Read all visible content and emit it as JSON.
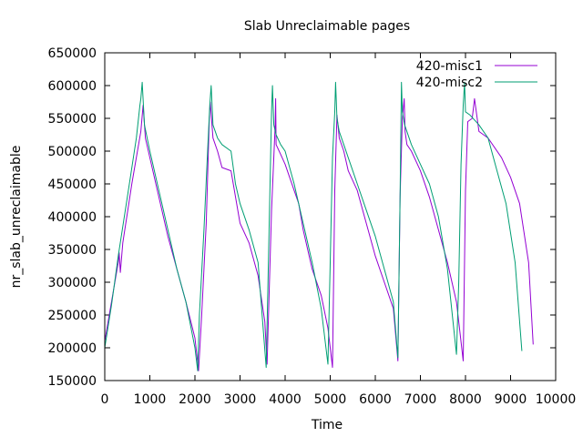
{
  "chart_data": {
    "type": "line",
    "title": "Slab Unreclaimable pages",
    "xlabel": "Time",
    "ylabel": "nr_slab_unreclaimable",
    "xlim": [
      0,
      10000
    ],
    "ylim": [
      150000,
      650000
    ],
    "xticks": [
      0,
      1000,
      2000,
      3000,
      4000,
      5000,
      6000,
      7000,
      8000,
      9000,
      10000
    ],
    "yticks": [
      150000,
      200000,
      250000,
      300000,
      350000,
      400000,
      450000,
      500000,
      550000,
      600000,
      650000
    ],
    "grid": false,
    "legend_position": "top-right",
    "series": [
      {
        "name": "420-misc1",
        "color": "#9400d3",
        "x": [
          0,
          150,
          300,
          320,
          345,
          400,
          600,
          800,
          850,
          900,
          1000,
          1200,
          1400,
          1600,
          1800,
          2000,
          2080,
          2150,
          2250,
          2320,
          2340,
          2400,
          2500,
          2600,
          2800,
          3000,
          3200,
          3400,
          3550,
          3600,
          3700,
          3780,
          3790,
          3800,
          3900,
          4000,
          4200,
          4300,
          4400,
          4600,
          4800,
          4950,
          5050,
          5100,
          5150,
          5200,
          5300,
          5400,
          5600,
          5800,
          6000,
          6200,
          6400,
          6500,
          6550,
          6600,
          6640,
          6660,
          6700,
          6800,
          7000,
          7200,
          7400,
          7600,
          7800,
          7950,
          8000,
          8050,
          8150,
          8200,
          8300,
          8500,
          8800,
          9000,
          9200,
          9400,
          9500
        ],
        "y": [
          210000,
          270000,
          330000,
          345000,
          315000,
          360000,
          450000,
          530000,
          570000,
          520000,
          490000,
          430000,
          370000,
          320000,
          270000,
          215000,
          165000,
          250000,
          390000,
          550000,
          575000,
          520000,
          500000,
          475000,
          470000,
          390000,
          360000,
          310000,
          240000,
          175000,
          410000,
          540000,
          580000,
          510000,
          495000,
          480000,
          440000,
          420000,
          380000,
          320000,
          280000,
          230000,
          170000,
          440000,
          555000,
          520000,
          500000,
          470000,
          440000,
          390000,
          340000,
          300000,
          260000,
          180000,
          430000,
          550000,
          580000,
          530000,
          510000,
          500000,
          470000,
          430000,
          380000,
          330000,
          270000,
          180000,
          440000,
          545000,
          550000,
          580000,
          530000,
          520000,
          490000,
          460000,
          420000,
          330000,
          205000
        ]
      },
      {
        "name": "420-misc2",
        "color": "#009e73",
        "x": [
          0,
          150,
          300,
          500,
          700,
          780,
          800,
          830,
          880,
          1000,
          1200,
          1400,
          1600,
          1800,
          2000,
          2060,
          2100,
          2200,
          2280,
          2330,
          2360,
          2400,
          2500,
          2600,
          2800,
          2900,
          3000,
          3200,
          3400,
          3580,
          3620,
          3700,
          3720,
          3750,
          3800,
          3900,
          4000,
          4200,
          4400,
          4600,
          4800,
          4950,
          5000,
          5050,
          5100,
          5120,
          5150,
          5200,
          5300,
          5400,
          5600,
          5800,
          6000,
          6200,
          6400,
          6500,
          6550,
          6580,
          6600,
          6650,
          6800,
          7000,
          7200,
          7400,
          7600,
          7800,
          7850,
          7900,
          7950,
          7980,
          8000,
          8100,
          8300,
          8500,
          8700,
          8900,
          9100,
          9250
        ],
        "y": [
          200000,
          265000,
          340000,
          430000,
          520000,
          570000,
          580000,
          605000,
          540000,
          500000,
          440000,
          380000,
          320000,
          270000,
          200000,
          165000,
          250000,
          380000,
          500000,
          570000,
          600000,
          540000,
          520000,
          510000,
          500000,
          450000,
          420000,
          380000,
          330000,
          170000,
          300000,
          560000,
          600000,
          540000,
          525000,
          510000,
          500000,
          450000,
          390000,
          330000,
          260000,
          175000,
          330000,
          490000,
          560000,
          605000,
          550000,
          530000,
          510000,
          490000,
          450000,
          410000,
          370000,
          320000,
          270000,
          185000,
          430000,
          605000,
          560000,
          540000,
          510000,
          480000,
          450000,
          400000,
          320000,
          190000,
          300000,
          480000,
          570000,
          605000,
          560000,
          555000,
          540000,
          520000,
          470000,
          420000,
          330000,
          195000
        ]
      }
    ]
  }
}
